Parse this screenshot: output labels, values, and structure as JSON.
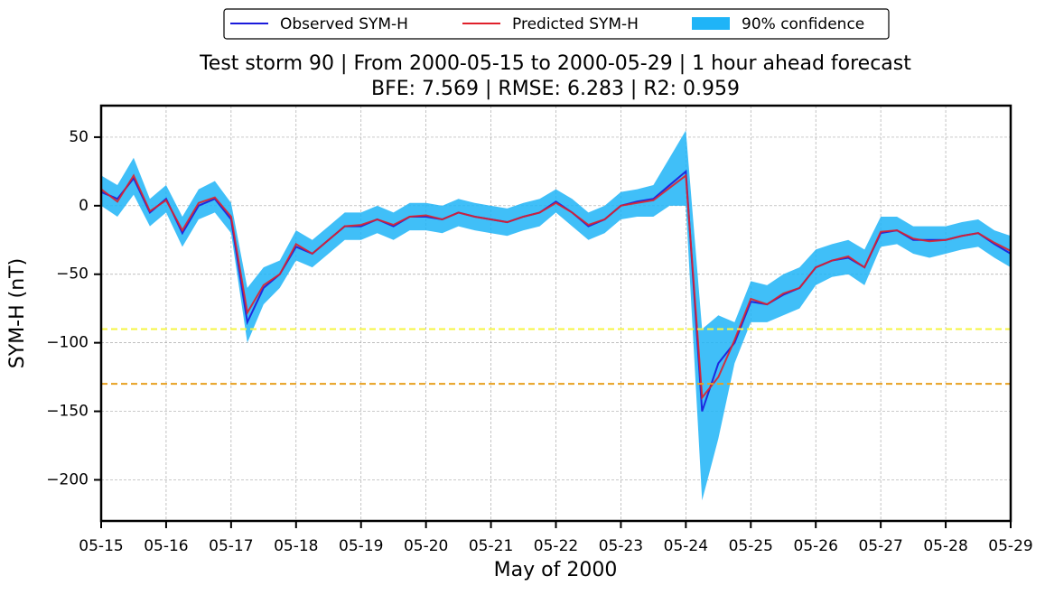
{
  "chart_data": {
    "type": "line",
    "title": "Test storm 90 | From 2000-05-15 to 2000-05-29 | 1 hour ahead forecast",
    "subtitle": "BFE: 7.569 | RMSE: 6.283 | R2: 0.959",
    "x_label": "May of 2000",
    "y_label": "SYM-H (nT)",
    "x": [
      15,
      15.25,
      15.5,
      15.75,
      16,
      16.25,
      16.5,
      16.75,
      17,
      17.25,
      17.5,
      17.75,
      18,
      18.25,
      18.5,
      18.75,
      19,
      19.25,
      19.5,
      19.75,
      20,
      20.25,
      20.5,
      20.75,
      21,
      21.25,
      21.5,
      21.75,
      22,
      22.25,
      22.5,
      22.75,
      23,
      23.25,
      23.5,
      23.75,
      24,
      24.25,
      24.5,
      24.75,
      25,
      25.25,
      25.5,
      25.75,
      26,
      26.25,
      26.5,
      26.75,
      27,
      27.25,
      27.5,
      27.75,
      28,
      28.25,
      28.5,
      28.75,
      29
    ],
    "series": [
      {
        "name": "90% confidence",
        "color": "#1fb4f7",
        "role": "band",
        "lower": [
          0,
          -8,
          8,
          -15,
          -5,
          -30,
          -10,
          -5,
          -20,
          -100,
          -72,
          -60,
          -40,
          -45,
          -35,
          -25,
          -25,
          -20,
          -25,
          -18,
          -18,
          -20,
          -15,
          -18,
          -20,
          -22,
          -18,
          -15,
          -5,
          -15,
          -25,
          -20,
          -10,
          -8,
          -8,
          0,
          0,
          -215,
          -170,
          -115,
          -85,
          -85,
          -80,
          -75,
          -58,
          -52,
          -50,
          -58,
          -30,
          -28,
          -35,
          -38,
          -35,
          -32,
          -30,
          -38,
          -45
        ],
        "upper": [
          22,
          15,
          35,
          5,
          15,
          -8,
          12,
          18,
          2,
          -60,
          -45,
          -40,
          -18,
          -25,
          -15,
          -5,
          -5,
          0,
          -5,
          2,
          2,
          0,
          5,
          2,
          0,
          -2,
          2,
          5,
          12,
          5,
          -5,
          0,
          10,
          12,
          15,
          35,
          55,
          -90,
          -80,
          -85,
          -55,
          -58,
          -50,
          -45,
          -32,
          -28,
          -25,
          -32,
          -8,
          -8,
          -15,
          -15,
          -15,
          -12,
          -10,
          -18,
          -22
        ]
      },
      {
        "name": "Observed SYM-H",
        "color": "#1a1adb",
        "values": [
          10,
          5,
          20,
          -5,
          5,
          -20,
          0,
          5,
          -10,
          -85,
          -60,
          -50,
          -30,
          -35,
          -25,
          -15,
          -15,
          -10,
          -15,
          -8,
          -8,
          -10,
          -5,
          -8,
          -10,
          -12,
          -8,
          -5,
          3,
          -5,
          -15,
          -10,
          0,
          3,
          5,
          15,
          25,
          -150,
          -115,
          -100,
          -70,
          -72,
          -65,
          -60,
          -45,
          -40,
          -38,
          -45,
          -20,
          -18,
          -25,
          -25,
          -25,
          -22,
          -20,
          -28,
          -35
        ]
      },
      {
        "name": "Predicted SYM-H",
        "color": "#e0202a",
        "values": [
          12,
          3,
          22,
          -4,
          4,
          -18,
          2,
          6,
          -8,
          -78,
          -58,
          -50,
          -28,
          -35,
          -25,
          -15,
          -14,
          -10,
          -14,
          -8,
          -7,
          -10,
          -5,
          -8,
          -10,
          -12,
          -8,
          -5,
          2,
          -5,
          -14,
          -10,
          0,
          2,
          4,
          13,
          22,
          -140,
          -125,
          -98,
          -68,
          -72,
          -64,
          -60,
          -45,
          -40,
          -37,
          -45,
          -19,
          -18,
          -24,
          -26,
          -25,
          -22,
          -20,
          -27,
          -33
        ]
      }
    ],
    "thresholds": [
      {
        "value": -90,
        "color": "#f5f542"
      },
      {
        "value": -130,
        "color": "#e8a020"
      }
    ],
    "xlim": [
      15,
      29
    ],
    "xticks": [
      {
        "value": 15,
        "label": "05-15"
      },
      {
        "value": 16,
        "label": "05-16"
      },
      {
        "value": 17,
        "label": "05-17"
      },
      {
        "value": 18,
        "label": "05-18"
      },
      {
        "value": 19,
        "label": "05-19"
      },
      {
        "value": 20,
        "label": "05-20"
      },
      {
        "value": 21,
        "label": "05-21"
      },
      {
        "value": 22,
        "label": "05-22"
      },
      {
        "value": 23,
        "label": "05-23"
      },
      {
        "value": 24,
        "label": "05-24"
      },
      {
        "value": 25,
        "label": "05-25"
      },
      {
        "value": 26,
        "label": "05-26"
      },
      {
        "value": 27,
        "label": "05-27"
      },
      {
        "value": 28,
        "label": "05-28"
      },
      {
        "value": 29,
        "label": "05-29"
      }
    ],
    "ylim": [
      -230,
      73
    ],
    "yticks": [
      {
        "value": -200,
        "label": "−200"
      },
      {
        "value": -150,
        "label": "−150"
      },
      {
        "value": -100,
        "label": "−100"
      },
      {
        "value": -50,
        "label": "−50"
      },
      0,
      50
    ],
    "grid": true,
    "legend": "top"
  }
}
